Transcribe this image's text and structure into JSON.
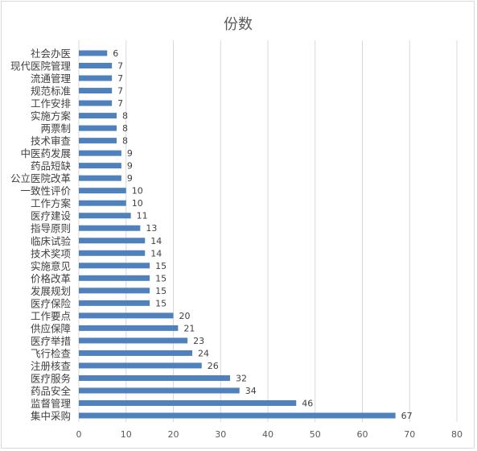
{
  "chart_data": {
    "type": "bar",
    "orientation": "horizontal",
    "title": "份数",
    "xlabel": "",
    "ylabel": "",
    "xlim": [
      0,
      80
    ],
    "x_ticks": [
      0,
      10,
      20,
      30,
      40,
      50,
      60,
      70,
      80
    ],
    "grid": "vertical",
    "legend": "none",
    "data_labels": true,
    "bar_color": "#4f81bd",
    "categories": [
      "社会办医",
      "现代医院管理",
      "流通管理",
      "规范标准",
      "工作安排",
      "实施方案",
      "两票制",
      "技术审查",
      "中医药发展",
      "药品短缺",
      "公立医院改革",
      "一致性评价",
      "工作方案",
      "医疗建设",
      "指导原则",
      "临床试验",
      "技术奖项",
      "实施意见",
      "价格改革",
      "发展规划",
      "医疗保险",
      "工作要点",
      "供应保障",
      "医疗举措",
      "飞行检查",
      "注册核查",
      "医疗服务",
      "药品安全",
      "监督管理",
      "集中采购"
    ],
    "values": [
      6,
      7,
      7,
      7,
      7,
      8,
      8,
      8,
      9,
      9,
      9,
      10,
      10,
      11,
      13,
      14,
      14,
      15,
      15,
      15,
      15,
      20,
      21,
      23,
      24,
      26,
      32,
      34,
      46,
      67
    ]
  }
}
